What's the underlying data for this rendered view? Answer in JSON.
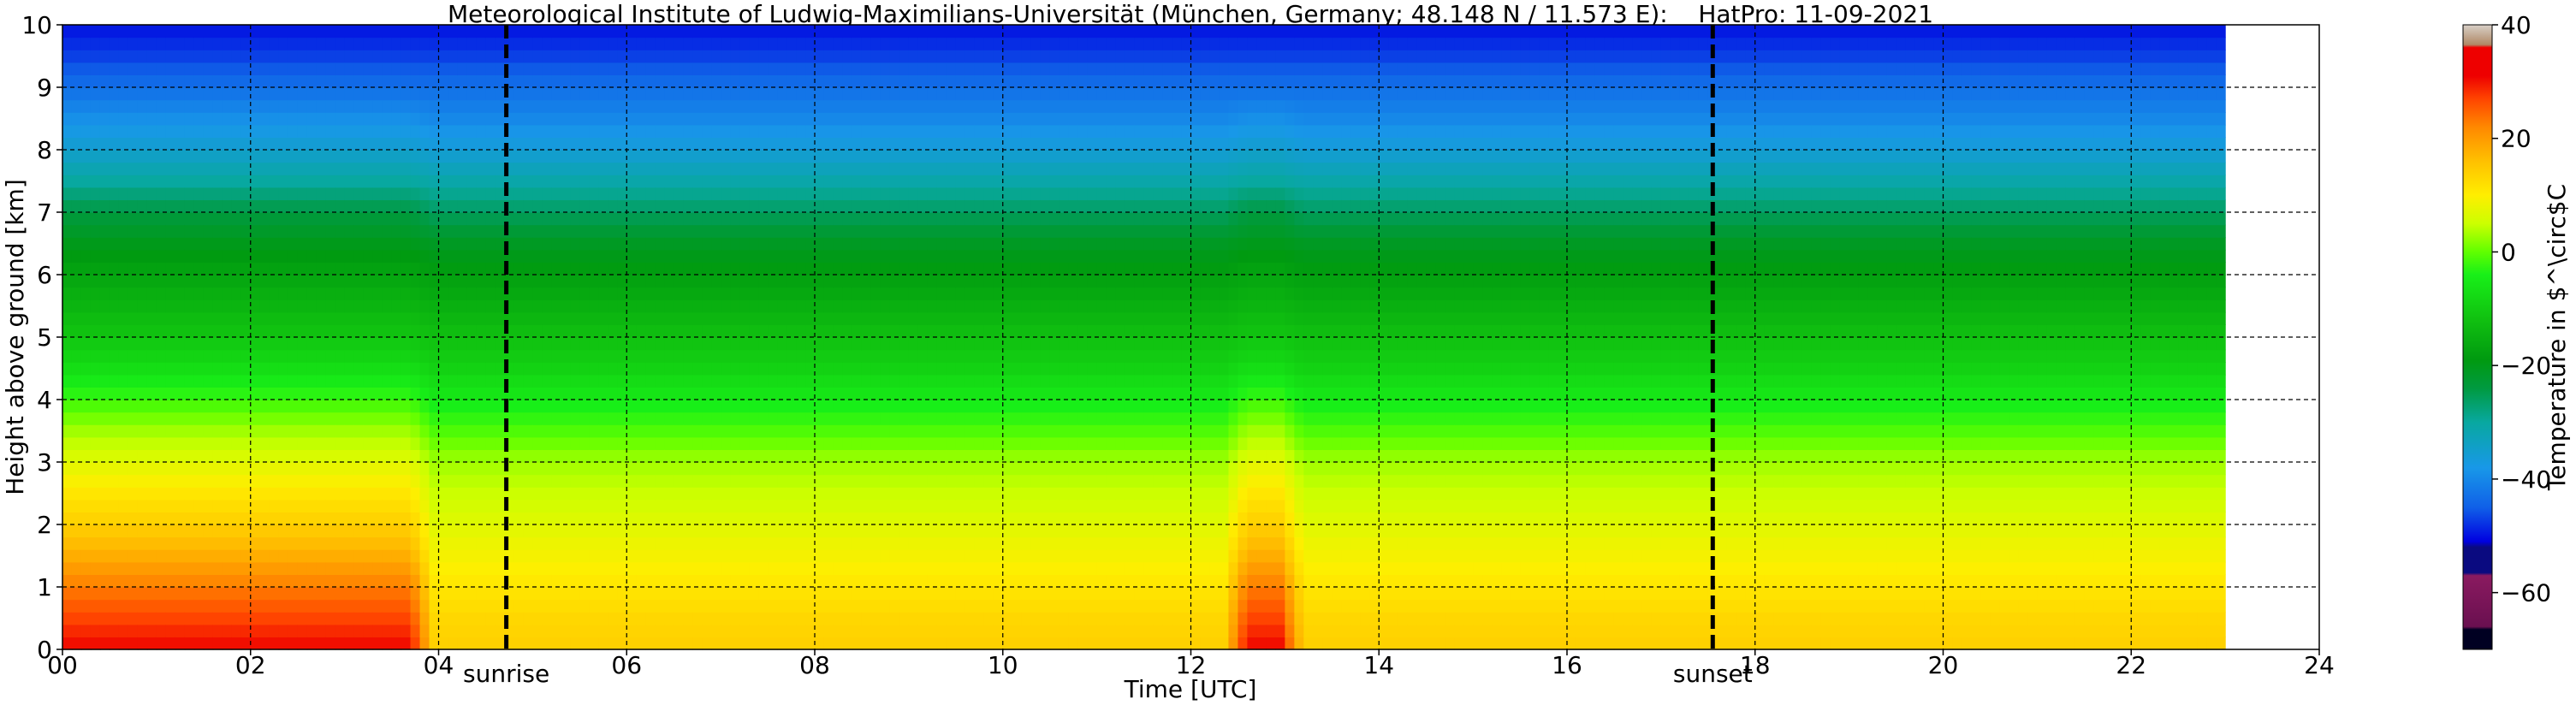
{
  "chart_data": {
    "type": "heatmap",
    "title": "Meteorological Institute of Ludwig-Maximilians-Universität (München, Germany; 48.148 N / 11.573 E):    HatPro: 11-09-2021",
    "xlabel": "Time [UTC]",
    "ylabel": "Height above ground [km]",
    "xlim": [
      0,
      24
    ],
    "ylim": [
      0,
      10
    ],
    "data_extent_x": [
      0,
      23
    ],
    "grid": true,
    "x_ticks": [
      0,
      2,
      4,
      6,
      8,
      10,
      12,
      14,
      16,
      18,
      20,
      22,
      24
    ],
    "x_tick_labels": [
      "00",
      "02",
      "04",
      "06",
      "08",
      "10",
      "12",
      "14",
      "16",
      "18",
      "20",
      "22",
      "24"
    ],
    "y_ticks": [
      0,
      1,
      2,
      3,
      4,
      5,
      6,
      7,
      8,
      9,
      10
    ],
    "y_tick_labels": [
      "0",
      "1",
      "2",
      "3",
      "4",
      "5",
      "6",
      "7",
      "8",
      "9",
      "10"
    ],
    "markers": [
      {
        "label": "sunrise",
        "x": 4.72
      },
      {
        "label": "sunset",
        "x": 17.55
      }
    ],
    "colorbar": {
      "label": "Temperature in $^\\circ$C",
      "range": [
        -70,
        40
      ],
      "ticks": [
        40,
        20,
        0,
        -20,
        -40,
        -60
      ],
      "tick_labels": [
        "40",
        "20",
        "0",
        "−20",
        "−40",
        "−60"
      ],
      "stops": [
        {
          "value": -70,
          "color": "#000022"
        },
        {
          "value": -66.5,
          "color": "#000022"
        },
        {
          "value": -66,
          "color": "#6a1050"
        },
        {
          "value": -57,
          "color": "#8a1a60"
        },
        {
          "value": -56.5,
          "color": "#0a0a80"
        },
        {
          "value": -52,
          "color": "#0a0a80"
        },
        {
          "value": -51,
          "color": "#0000e0"
        },
        {
          "value": -45,
          "color": "#1060e8"
        },
        {
          "value": -38,
          "color": "#1898e8"
        },
        {
          "value": -30,
          "color": "#08a8a0"
        },
        {
          "value": -24,
          "color": "#009a40"
        },
        {
          "value": -19,
          "color": "#009a10"
        },
        {
          "value": -12,
          "color": "#10c010"
        },
        {
          "value": -4,
          "color": "#18f018"
        },
        {
          "value": 0,
          "color": "#60ff00"
        },
        {
          "value": 5,
          "color": "#ccff00"
        },
        {
          "value": 10,
          "color": "#ffee00"
        },
        {
          "value": 16,
          "color": "#ffc000"
        },
        {
          "value": 22,
          "color": "#ff8800"
        },
        {
          "value": 27,
          "color": "#ff4400"
        },
        {
          "value": 31,
          "color": "#ee0000"
        },
        {
          "value": 36,
          "color": "#ee0000"
        },
        {
          "value": 36.5,
          "color": "#b08866"
        },
        {
          "value": 40,
          "color": "#d8d0c8"
        }
      ]
    },
    "profiles": {
      "heights_km": [
        0,
        0.5,
        1,
        1.5,
        2,
        2.5,
        3,
        3.5,
        4,
        4.5,
        5,
        5.5,
        6,
        6.5,
        7,
        7.5,
        8,
        8.5,
        9,
        9.5,
        10
      ],
      "background_profile_c": [
        14,
        13,
        11,
        9,
        7,
        5,
        3,
        -1,
        -5,
        -9,
        -12,
        -15,
        -18,
        -21,
        -26,
        -31,
        -36,
        -40,
        -43,
        -47,
        -50
      ],
      "warm_profile_c": [
        31,
        27,
        23,
        18,
        14,
        11,
        7,
        3,
        -2,
        -7,
        -11,
        -14,
        -17,
        -20,
        -24,
        -30,
        -35,
        -39,
        -43,
        -47,
        -50
      ]
    },
    "warm_episodes": [
      {
        "start": 0.0,
        "end": 3.7,
        "strength": 1.0
      },
      {
        "start": 12.6,
        "end": 12.95,
        "strength": 1.0
      }
    ]
  }
}
